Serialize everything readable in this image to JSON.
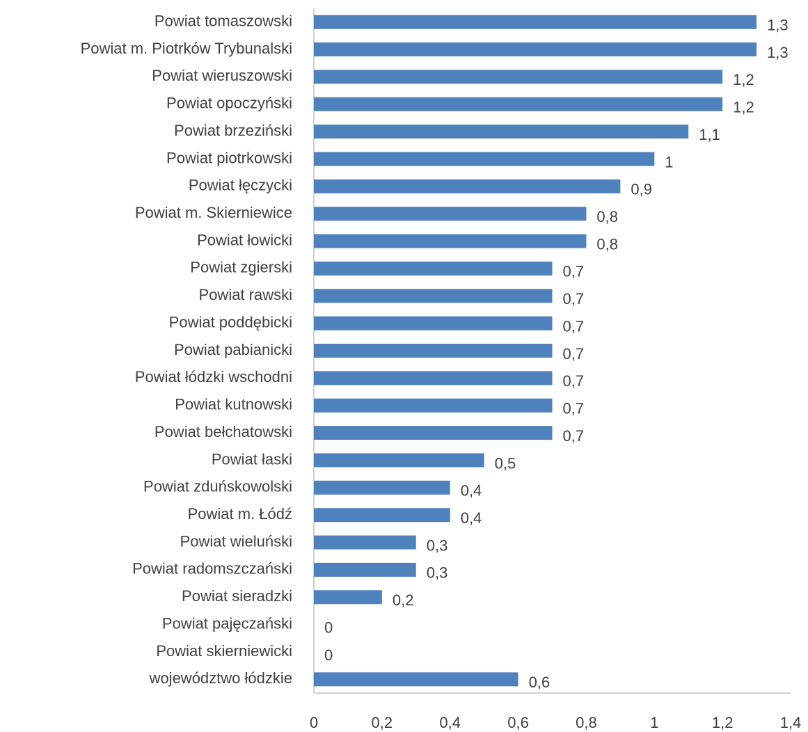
{
  "chart_data": {
    "type": "bar",
    "orientation": "horizontal",
    "categories": [
      "Powiat tomaszowski",
      "Powiat m. Piotrków Trybunalski",
      "Powiat wieruszowski",
      "Powiat opoczyński",
      "Powiat brzeziński",
      "Powiat piotrkowski",
      "Powiat łęczycki",
      "Powiat m. Skierniewice",
      "Powiat łowicki",
      "Powiat zgierski",
      "Powiat rawski",
      "Powiat poddębicki",
      "Powiat pabianicki",
      "Powiat łódzki wschodni",
      "Powiat kutnowski",
      "Powiat bełchatowski",
      "Powiat łaski",
      "Powiat zduńskowolski",
      "Powiat m. Łódź",
      "Powiat wieluński",
      "Powiat radomszczański",
      "Powiat sieradzki",
      "Powiat pajęczański",
      "Powiat skierniewicki",
      "województwo łódzkie"
    ],
    "values": [
      1.3,
      1.3,
      1.2,
      1.2,
      1.1,
      1,
      0.9,
      0.8,
      0.8,
      0.7,
      0.7,
      0.7,
      0.7,
      0.7,
      0.7,
      0.7,
      0.5,
      0.4,
      0.4,
      0.3,
      0.3,
      0.2,
      0,
      0,
      0.6
    ],
    "value_labels": [
      "1,3",
      "1,3",
      "1,2",
      "1,2",
      "1,1",
      "1",
      "0,9",
      "0,8",
      "0,8",
      "0,7",
      "0,7",
      "0,7",
      "0,7",
      "0,7",
      "0,7",
      "0,7",
      "0,5",
      "0,4",
      "0,4",
      "0,3",
      "0,3",
      "0,2",
      "0",
      "0",
      "0,6"
    ],
    "color": "#4f81bd",
    "xlim": [
      0,
      1.4
    ],
    "xticks": [
      0,
      {
        "value": 0.2,
        "label": "0,2"
      },
      {
        "value": 0.4,
        "label": "0,4"
      },
      {
        "value": 0.6,
        "label": "0,6"
      },
      {
        "value": 0.8,
        "label": "0,8"
      },
      1,
      {
        "value": 1.2,
        "label": "1,2"
      },
      {
        "value": 1.4,
        "label": "1,4"
      }
    ],
    "grid": false
  }
}
